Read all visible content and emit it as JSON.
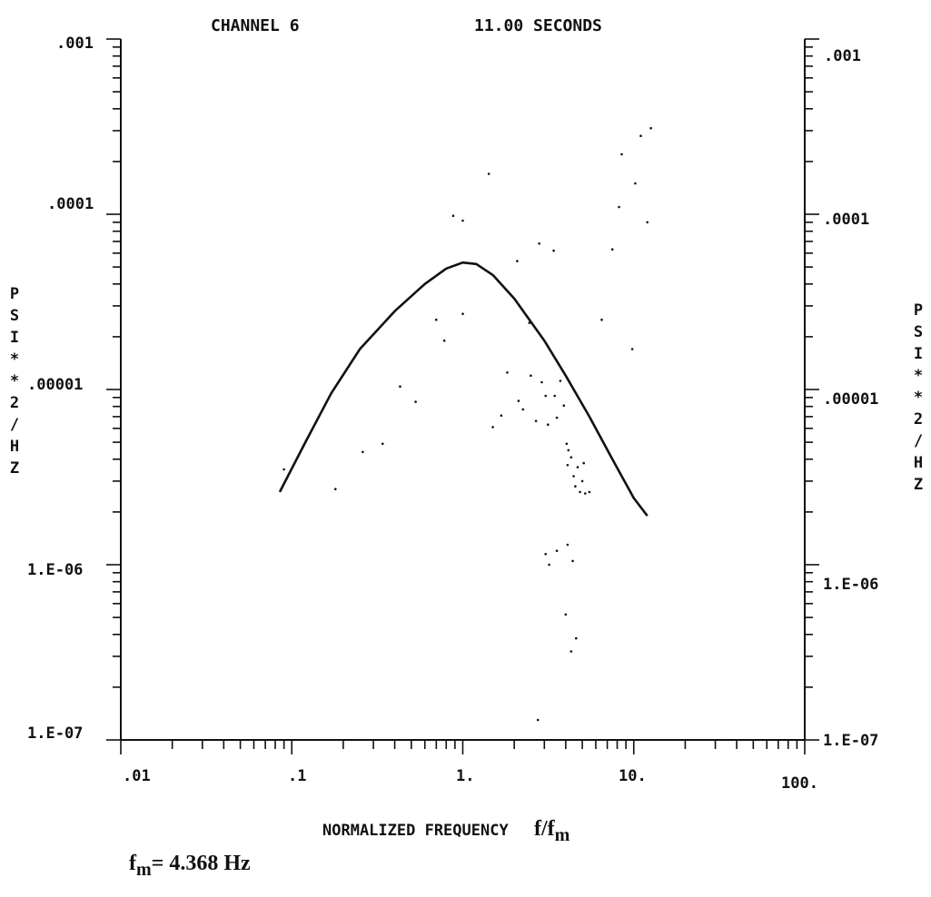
{
  "chart_data": {
    "type": "scatter",
    "title_left": "CHANNEL  6",
    "title_right": "11.00 SECONDS",
    "xlabel": "NORMALIZED FREQUENCY",
    "xlabel_math_base": "f/f",
    "xlabel_math_sub": "m",
    "ylabel": "PSI**2/HZ",
    "x_scale": "log",
    "y_scale": "log",
    "xlim": [
      0.01,
      100
    ],
    "ylim": [
      1e-07,
      0.001
    ],
    "x_tick_labels": [
      ".01",
      ".1",
      "1.",
      "10.",
      "100."
    ],
    "y_tick_labels_left": [
      ".001",
      ".0001",
      ".00001",
      "1.E-06",
      "1.E-07"
    ],
    "y_tick_labels_right": [
      ".001",
      ".0001",
      ".00001",
      "1.E-06",
      "1.E-07"
    ],
    "grid": false,
    "series": [
      {
        "kind": "curve",
        "points": [
          [
            0.085,
            2.6e-06
          ],
          [
            0.12,
            5e-06
          ],
          [
            0.17,
            9.5e-06
          ],
          [
            0.25,
            1.7e-05
          ],
          [
            0.4,
            2.8e-05
          ],
          [
            0.6,
            4e-05
          ],
          [
            0.8,
            4.9e-05
          ],
          [
            1.0,
            5.3e-05
          ],
          [
            1.2,
            5.2e-05
          ],
          [
            1.5,
            4.5e-05
          ],
          [
            2.0,
            3.3e-05
          ],
          [
            3.0,
            1.9e-05
          ],
          [
            4.0,
            1.2e-05
          ],
          [
            5.5,
            7e-06
          ],
          [
            7.5,
            4e-06
          ],
          [
            10.0,
            2.4e-06
          ],
          [
            12.0,
            1.9e-06
          ]
        ]
      },
      {
        "kind": "points",
        "points": [
          [
            0.09,
            3.5e-06
          ],
          [
            0.18,
            2.7e-06
          ],
          [
            0.26,
            4.4e-06
          ],
          [
            0.34,
            4.9e-06
          ],
          [
            0.43,
            1.04e-05
          ],
          [
            0.53,
            8.5e-06
          ],
          [
            0.7,
            2.5e-05
          ],
          [
            0.78,
            1.9e-05
          ],
          [
            1.0,
            2.7e-05
          ],
          [
            0.88,
            9.8e-05
          ],
          [
            1.0,
            9.2e-05
          ],
          [
            1.42,
            0.00017
          ],
          [
            1.5,
            6.1e-06
          ],
          [
            1.68,
            7.1e-06
          ],
          [
            1.82,
            1.25e-05
          ],
          [
            2.08,
            5.4e-05
          ],
          [
            2.12,
            8.6e-06
          ],
          [
            2.25,
            7.7e-06
          ],
          [
            2.45,
            2.4e-05
          ],
          [
            2.5,
            1.2e-05
          ],
          [
            2.68,
            6.6e-06
          ],
          [
            2.8,
            6.8e-05
          ],
          [
            2.9,
            1.1e-05
          ],
          [
            3.05,
            9.2e-06
          ],
          [
            3.15,
            6.3e-06
          ],
          [
            3.4,
            6.2e-05
          ],
          [
            3.45,
            9.2e-06
          ],
          [
            3.55,
            6.9e-06
          ],
          [
            3.72,
            1.12e-05
          ],
          [
            3.9,
            8.1e-06
          ],
          [
            4.05,
            4.9e-06
          ],
          [
            4.1,
            3.7e-06
          ],
          [
            4.15,
            4.5e-06
          ],
          [
            4.3,
            4.1e-06
          ],
          [
            4.45,
            3.2e-06
          ],
          [
            4.55,
            2.8e-06
          ],
          [
            4.7,
            3.6e-06
          ],
          [
            4.85,
            2.6e-06
          ],
          [
            5.0,
            3e-06
          ],
          [
            5.1,
            3.8e-06
          ],
          [
            5.2,
            2.55e-06
          ],
          [
            5.5,
            2.6e-06
          ],
          [
            3.05,
            1.15e-06
          ],
          [
            3.2,
            1e-06
          ],
          [
            3.55,
            1.2e-06
          ],
          [
            4.1,
            1.3e-06
          ],
          [
            4.4,
            1.05e-06
          ],
          [
            4.0,
            5.2e-07
          ],
          [
            4.3,
            3.2e-07
          ],
          [
            4.6,
            3.8e-07
          ],
          [
            2.75,
            1.3e-07
          ],
          [
            6.5,
            2.5e-05
          ],
          [
            7.5,
            6.3e-05
          ],
          [
            8.2,
            0.00011
          ],
          [
            8.5,
            0.00022
          ],
          [
            10.2,
            0.00015
          ],
          [
            11.0,
            0.00028
          ],
          [
            12.0,
            9e-05
          ],
          [
            12.6,
            0.00031
          ],
          [
            9.8,
            1.7e-05
          ]
        ]
      }
    ]
  },
  "annotation": {
    "fm_base": "f",
    "fm_sub": "m",
    "fm_value": "= 4.368 Hz"
  }
}
